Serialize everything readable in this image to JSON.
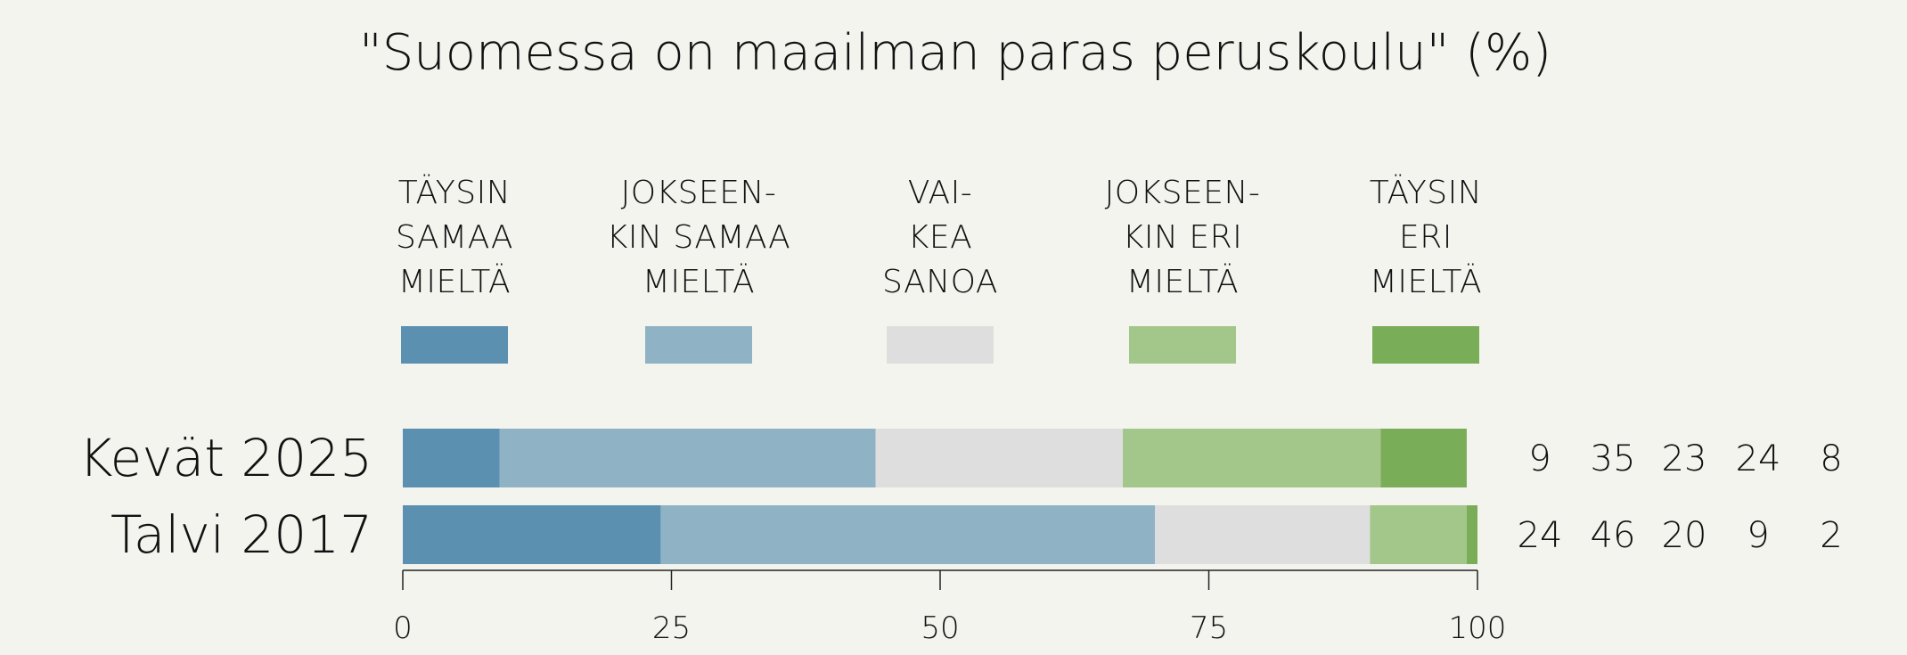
{
  "chart_data": {
    "type": "bar",
    "orientation": "horizontal",
    "stacked": true,
    "title": "\"Suomessa on maailman paras peruskoulu\" (%)",
    "categories": [
      "Kevät 2025",
      "Talvi 2017"
    ],
    "series": [
      {
        "name": "TÄYSIN SAMAA MIELTÄ",
        "label_lines": [
          "TÄYSIN",
          "SAMAA",
          "MIELTÄ"
        ],
        "color": "#5b90b1",
        "values": [
          9,
          24
        ]
      },
      {
        "name": "JOKSEEN-KIN SAMAA MIELTÄ",
        "label_lines": [
          "JOKSEEN-",
          "KIN SAMAA",
          "MIELTÄ"
        ],
        "color": "#8fb2c5",
        "values": [
          35,
          46
        ]
      },
      {
        "name": "VAI-KEA SANOA",
        "label_lines": [
          "VAI-",
          "KEA",
          "SANOA"
        ],
        "color": "#dedede",
        "values": [
          23,
          20
        ]
      },
      {
        "name": "JOKSEEN-KIN ERI MIELTÄ",
        "label_lines": [
          "JOKSEEN-",
          "KIN ERI",
          "MIELTÄ"
        ],
        "color": "#a3c68a",
        "values": [
          24,
          9
        ]
      },
      {
        "name": "TÄYSIN ERI MIELTÄ",
        "label_lines": [
          "TÄYSIN",
          "ERI",
          "MIELTÄ"
        ],
        "color": "#7aad57",
        "values": [
          8,
          2
        ]
      }
    ],
    "xlim": [
      0,
      100
    ],
    "xticks": [
      "0",
      "25",
      "50",
      "75",
      "100"
    ],
    "grid": false,
    "legend_position": "top"
  }
}
